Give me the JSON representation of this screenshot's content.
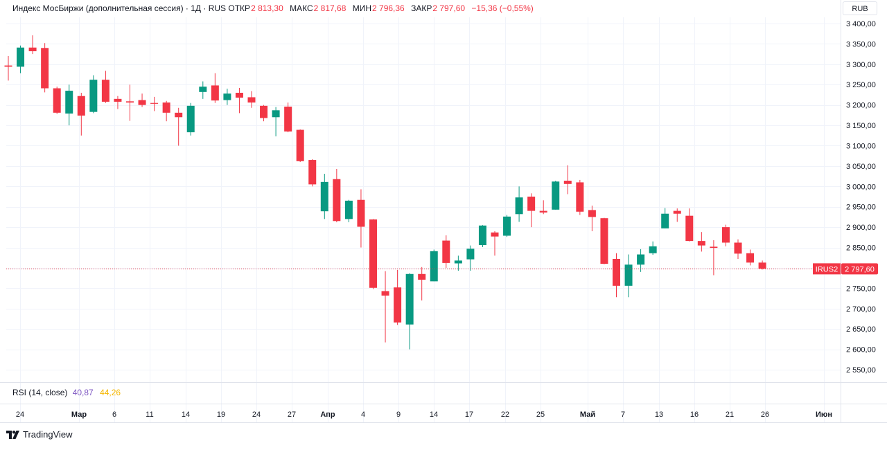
{
  "legend": {
    "title": "Индекс МосБиржи (дополнительная сессия) · 1Д · RUS",
    "open_label": "ОТКР",
    "open_value": "2 813,30",
    "high_label": "МАКС",
    "high_value": "2 817,68",
    "low_label": "МИН",
    "low_value": "2 796,36",
    "close_label": "ЗАКР",
    "close_value": "2 797,60",
    "change": "−15,36 (−0,55%)"
  },
  "currency_button": "RUB",
  "price_tag": {
    "symbol": "IRUS2",
    "value": "2 797,60"
  },
  "rsi": {
    "label": "RSI (14, close)",
    "value1": "40,87",
    "value2": "44,26"
  },
  "brand": "TradingView",
  "colors": {
    "up": "#089981",
    "down": "#f23645",
    "grid": "#f0f3fa",
    "rsi_line": "#7e57c2",
    "rsi_ma": "#f5b700"
  },
  "chart_data": {
    "type": "candlestick",
    "y_ticks": [
      2550,
      2600,
      2650,
      2700,
      2750,
      2800,
      2850,
      2900,
      2950,
      3000,
      3050,
      3100,
      3150,
      3200,
      3250,
      3300,
      3350,
      3400
    ],
    "y_tick_labels": [
      "2 550,00",
      "2 600,00",
      "2 650,00",
      "2 700,00",
      "2 750,00",
      "2 800,00",
      "2 850,00",
      "2 900,00",
      "2 950,00",
      "3 000,00",
      "3 050,00",
      "3 100,00",
      "3 150,00",
      "3 200,00",
      "3 250,00",
      "3 300,00",
      "3 350,00",
      "3 400,00"
    ],
    "x_tick_labels": [
      "24",
      "Мар",
      "6",
      "11",
      "14",
      "19",
      "24",
      "27",
      "Апр",
      "4",
      "9",
      "14",
      "17",
      "22",
      "25",
      "Май",
      "7",
      "13",
      "16",
      "21",
      "26",
      "Июн"
    ],
    "last_price": 2797.6,
    "candles": [
      {
        "o": 3297,
        "h": 3320,
        "l": 3260,
        "c": 3294
      },
      {
        "o": 3294,
        "h": 3346,
        "l": 3278,
        "c": 3341
      },
      {
        "o": 3341,
        "h": 3371,
        "l": 3325,
        "c": 3332
      },
      {
        "o": 3340,
        "h": 3352,
        "l": 3231,
        "c": 3241
      },
      {
        "o": 3241,
        "h": 3245,
        "l": 3178,
        "c": 3181
      },
      {
        "o": 3179,
        "h": 3250,
        "l": 3150,
        "c": 3235
      },
      {
        "o": 3222,
        "h": 3230,
        "l": 3125,
        "c": 3174
      },
      {
        "o": 3183,
        "h": 3273,
        "l": 3180,
        "c": 3262
      },
      {
        "o": 3262,
        "h": 3284,
        "l": 3205,
        "c": 3208
      },
      {
        "o": 3215,
        "h": 3222,
        "l": 3190,
        "c": 3208
      },
      {
        "o": 3209,
        "h": 3250,
        "l": 3161,
        "c": 3206
      },
      {
        "o": 3212,
        "h": 3228,
        "l": 3195,
        "c": 3200
      },
      {
        "o": 3205,
        "h": 3220,
        "l": 3185,
        "c": 3203
      },
      {
        "o": 3206,
        "h": 3210,
        "l": 3160,
        "c": 3181
      },
      {
        "o": 3181,
        "h": 3193,
        "l": 3100,
        "c": 3170
      },
      {
        "o": 3133,
        "h": 3205,
        "l": 3125,
        "c": 3198
      },
      {
        "o": 3232,
        "h": 3258,
        "l": 3215,
        "c": 3245
      },
      {
        "o": 3248,
        "h": 3278,
        "l": 3205,
        "c": 3211
      },
      {
        "o": 3212,
        "h": 3240,
        "l": 3200,
        "c": 3228
      },
      {
        "o": 3230,
        "h": 3242,
        "l": 3180,
        "c": 3218
      },
      {
        "o": 3219,
        "h": 3234,
        "l": 3193,
        "c": 3206
      },
      {
        "o": 3198,
        "h": 3200,
        "l": 3160,
        "c": 3168
      },
      {
        "o": 3170,
        "h": 3195,
        "l": 3123,
        "c": 3187
      },
      {
        "o": 3196,
        "h": 3206,
        "l": 3133,
        "c": 3135
      },
      {
        "o": 3139,
        "h": 3140,
        "l": 3060,
        "c": 3062
      },
      {
        "o": 3065,
        "h": 3067,
        "l": 3000,
        "c": 3005
      },
      {
        "o": 2939,
        "h": 3031,
        "l": 2920,
        "c": 3011
      },
      {
        "o": 3018,
        "h": 3043,
        "l": 2912,
        "c": 2915
      },
      {
        "o": 2920,
        "h": 2967,
        "l": 2912,
        "c": 2965
      },
      {
        "o": 2967,
        "h": 2993,
        "l": 2850,
        "c": 2901
      },
      {
        "o": 2919,
        "h": 2920,
        "l": 2748,
        "c": 2751
      },
      {
        "o": 2743,
        "h": 2792,
        "l": 2617,
        "c": 2732
      },
      {
        "o": 2752,
        "h": 2795,
        "l": 2660,
        "c": 2666
      },
      {
        "o": 2661,
        "h": 2787,
        "l": 2600,
        "c": 2785
      },
      {
        "o": 2785,
        "h": 2802,
        "l": 2720,
        "c": 2771
      },
      {
        "o": 2767,
        "h": 2845,
        "l": 2767,
        "c": 2841
      },
      {
        "o": 2867,
        "h": 2880,
        "l": 2800,
        "c": 2812
      },
      {
        "o": 2811,
        "h": 2830,
        "l": 2793,
        "c": 2818
      },
      {
        "o": 2821,
        "h": 2855,
        "l": 2793,
        "c": 2847
      },
      {
        "o": 2856,
        "h": 2905,
        "l": 2851,
        "c": 2904
      },
      {
        "o": 2887,
        "h": 2890,
        "l": 2830,
        "c": 2877
      },
      {
        "o": 2879,
        "h": 2930,
        "l": 2876,
        "c": 2926
      },
      {
        "o": 2932,
        "h": 3000,
        "l": 2913,
        "c": 2973
      },
      {
        "o": 2975,
        "h": 2983,
        "l": 2900,
        "c": 2940
      },
      {
        "o": 2940,
        "h": 2966,
        "l": 2932,
        "c": 2936
      },
      {
        "o": 2943,
        "h": 3014,
        "l": 2943,
        "c": 3012
      },
      {
        "o": 3014,
        "h": 3052,
        "l": 2981,
        "c": 3006
      },
      {
        "o": 3010,
        "h": 3016,
        "l": 2930,
        "c": 2938
      },
      {
        "o": 2942,
        "h": 2953,
        "l": 2890,
        "c": 2925
      },
      {
        "o": 2922,
        "h": 2923,
        "l": 2809,
        "c": 2810
      },
      {
        "o": 2822,
        "h": 2836,
        "l": 2728,
        "c": 2756
      },
      {
        "o": 2756,
        "h": 2833,
        "l": 2728,
        "c": 2808
      },
      {
        "o": 2808,
        "h": 2846,
        "l": 2790,
        "c": 2833
      },
      {
        "o": 2836,
        "h": 2865,
        "l": 2832,
        "c": 2853
      },
      {
        "o": 2897,
        "h": 2947,
        "l": 2897,
        "c": 2933
      },
      {
        "o": 2940,
        "h": 2946,
        "l": 2913,
        "c": 2933
      },
      {
        "o": 2928,
        "h": 2946,
        "l": 2865,
        "c": 2866
      },
      {
        "o": 2866,
        "h": 2888,
        "l": 2840,
        "c": 2855
      },
      {
        "o": 2852,
        "h": 2868,
        "l": 2782,
        "c": 2849
      },
      {
        "o": 2900,
        "h": 2906,
        "l": 2853,
        "c": 2862
      },
      {
        "o": 2862,
        "h": 2870,
        "l": 2822,
        "c": 2835
      },
      {
        "o": 2836,
        "h": 2845,
        "l": 2806,
        "c": 2813
      },
      {
        "o": 2813,
        "h": 2818,
        "l": 2796,
        "c": 2798
      }
    ]
  }
}
